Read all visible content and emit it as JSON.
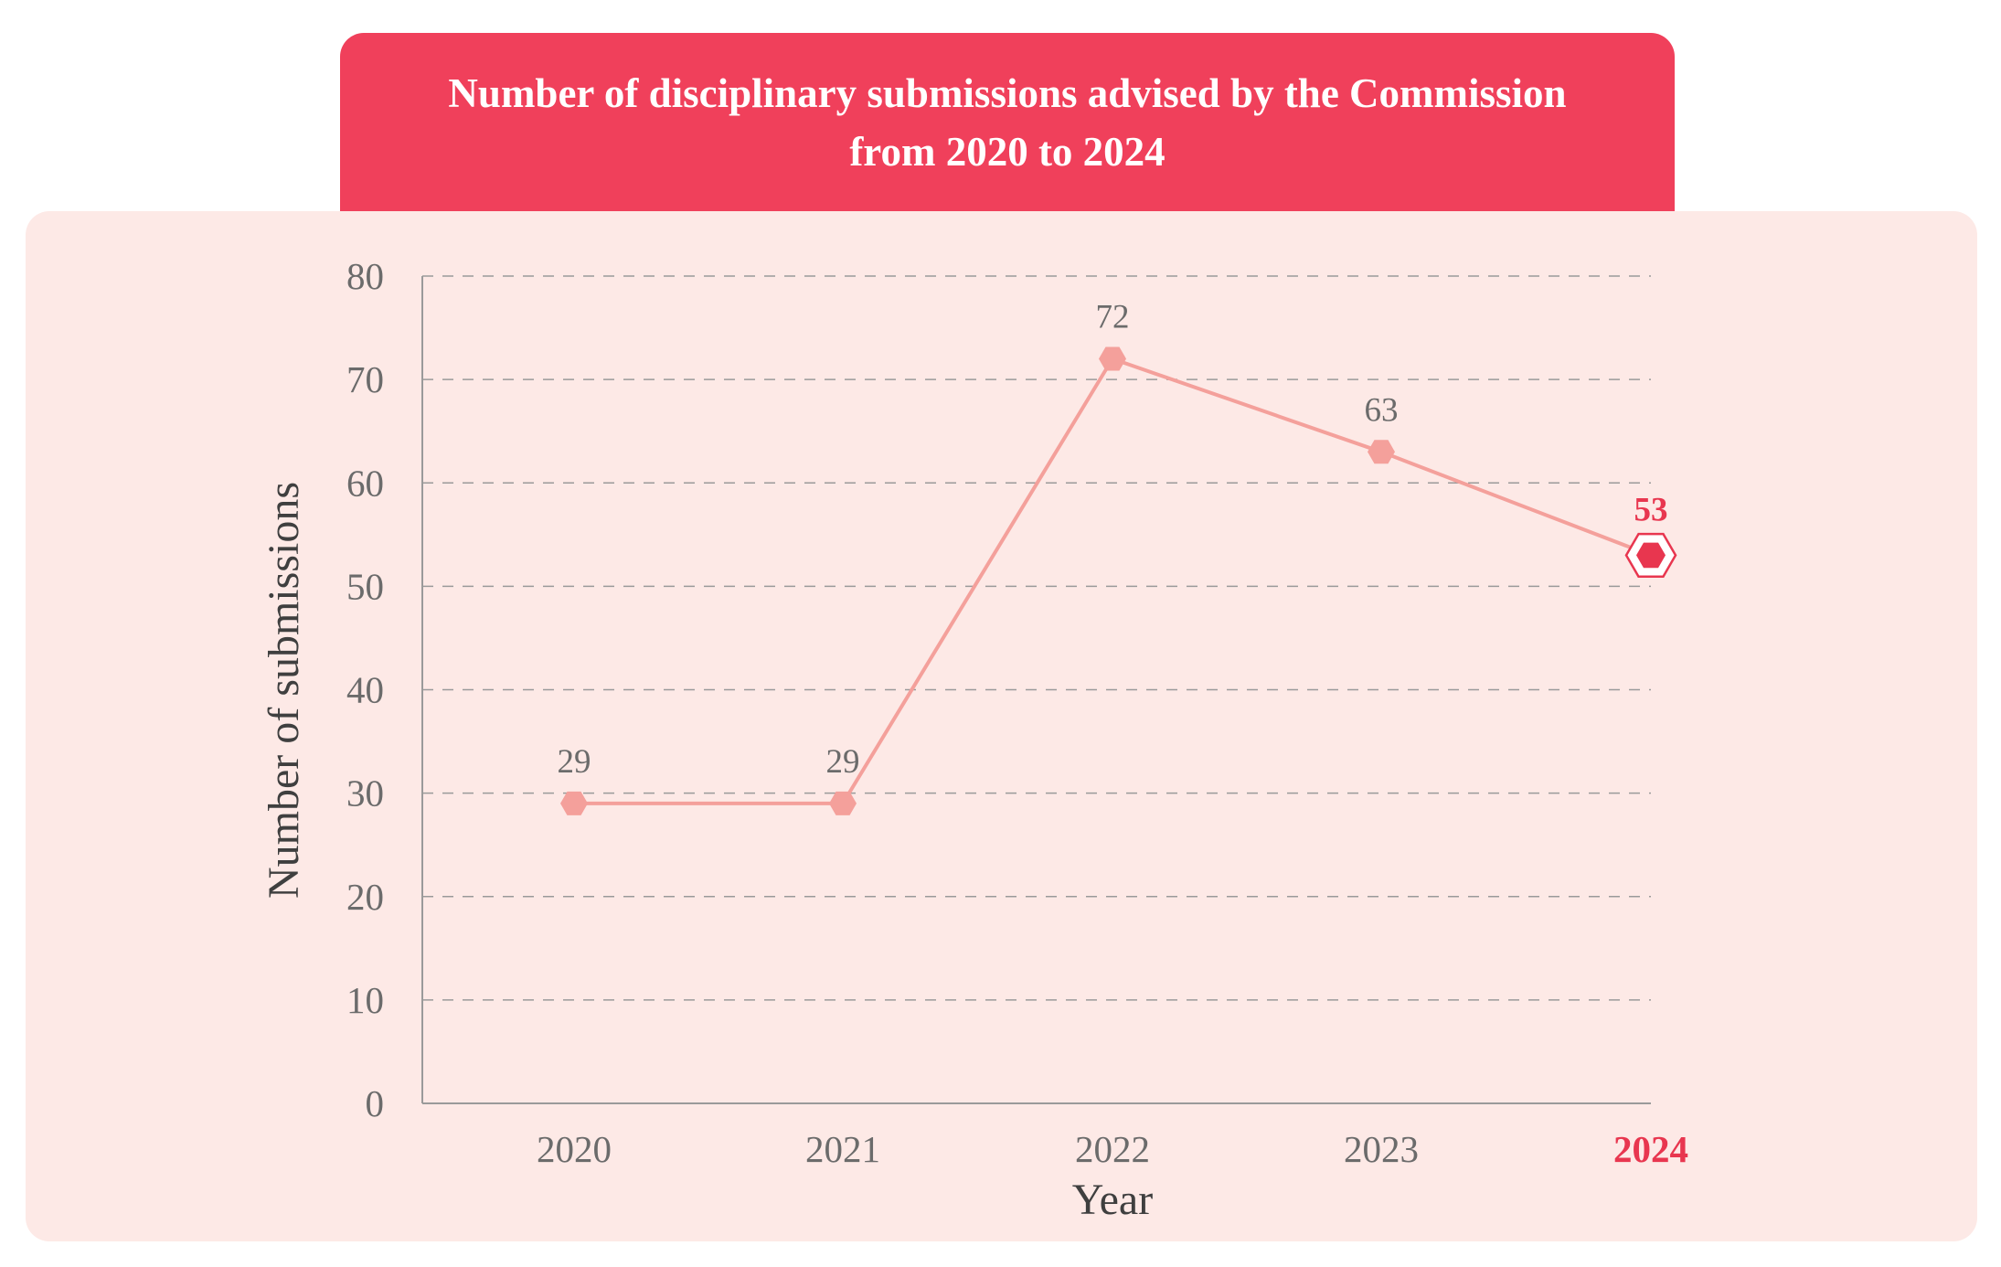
{
  "chart_data": {
    "type": "line",
    "title": "Number of disciplinary submissions advised by the Commission from 2020 to 2024",
    "title_lines": [
      "Number of disciplinary submissions advised by the Commission",
      "from 2020 to 2024"
    ],
    "xlabel": "Year",
    "ylabel": "Number of submissions",
    "categories": [
      "2020",
      "2021",
      "2022",
      "2023",
      "2024"
    ],
    "values": [
      29,
      29,
      72,
      63,
      53
    ],
    "ylim": [
      0,
      80
    ],
    "yticks": [
      0,
      10,
      20,
      30,
      40,
      50,
      60,
      70,
      80
    ],
    "grid": "horizontal dashed",
    "highlight_category": "2024",
    "colors": {
      "banner": "#f0405b",
      "panel": "#fde9e6",
      "line": "#f4a09b",
      "marker": "#f4a09b",
      "highlight": "#e8364f",
      "grid": "#9a9a9a",
      "axis": "#9a9a9a"
    }
  }
}
